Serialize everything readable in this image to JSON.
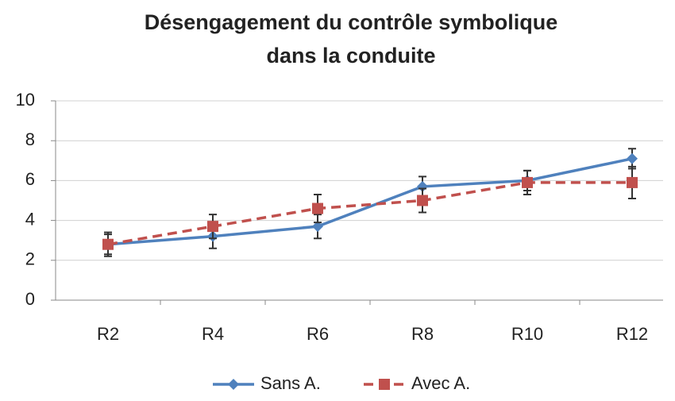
{
  "chart_data": {
    "type": "line",
    "title": [
      "Désengagement du contrôle symbolique",
      "dans la conduite"
    ],
    "categories": [
      "R2",
      "R4",
      "R6",
      "R8",
      "R10",
      "R12"
    ],
    "series": [
      {
        "name": "Sans A.",
        "color": "#4f81bd",
        "marker": "diamond",
        "dash": false,
        "values": [
          2.8,
          3.2,
          3.7,
          5.7,
          6.0,
          7.1
        ],
        "errors": [
          0.6,
          0.6,
          0.6,
          0.5,
          0.5,
          0.5
        ]
      },
      {
        "name": "Avec A.",
        "color": "#c0504d",
        "marker": "square",
        "dash": true,
        "values": [
          2.8,
          3.7,
          4.6,
          5.0,
          5.9,
          5.9
        ],
        "errors": [
          0.5,
          0.6,
          0.7,
          0.6,
          0.6,
          0.8
        ]
      }
    ],
    "ylim": [
      0,
      10
    ],
    "yticks": [
      0,
      2,
      4,
      6,
      8,
      10
    ],
    "grid": true,
    "legend": "bottom"
  }
}
